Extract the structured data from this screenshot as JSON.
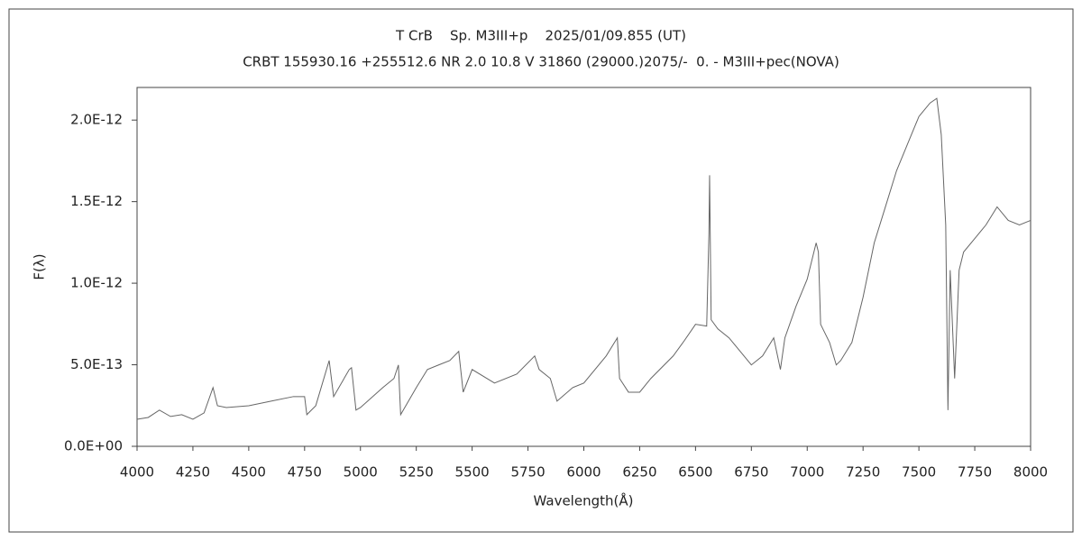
{
  "chart_data": {
    "type": "line",
    "title": "T CrB    Sp. M3III+p    2025/01/09.855 (UT)",
    "subtitle": "CRBT 155930.16 +255512.6 NR 2.0 10.8 V 31860 (29000.)2075/-  0. - M3III+pec(NOVA)",
    "x_label": "Wavelength(Å)",
    "y_label": "F(λ)",
    "xlim": [
      4000,
      8000
    ],
    "ylim": [
      0,
      2.2e-12
    ],
    "xticks": [
      4000,
      4250,
      4500,
      4750,
      5000,
      5250,
      5500,
      5750,
      6000,
      6250,
      6500,
      6750,
      7000,
      7250,
      7500,
      7750,
      8000
    ],
    "yticks": [
      {
        "value": 0,
        "label": "0.0E+00"
      },
      {
        "value": 5e-13,
        "label": "5.0E-13"
      },
      {
        "value": 1e-12,
        "label": "1.0E-12"
      },
      {
        "value": 1.5e-12,
        "label": "1.5E-12"
      },
      {
        "value": 2e-12,
        "label": "2.0E-12"
      }
    ],
    "color": "#666666",
    "x": [
      4000,
      4050,
      4100,
      4150,
      4200,
      4250,
      4300,
      4340,
      4360,
      4400,
      4500,
      4600,
      4700,
      4750,
      4760,
      4800,
      4860,
      4880,
      4950,
      4960,
      4980,
      5000,
      5100,
      5150,
      5170,
      5180,
      5250,
      5300,
      5350,
      5400,
      5440,
      5460,
      5500,
      5600,
      5700,
      5780,
      5800,
      5850,
      5880,
      5950,
      6000,
      6100,
      6150,
      6160,
      6200,
      6250,
      6300,
      6400,
      6450,
      6500,
      6550,
      6560,
      6563,
      6570,
      6600,
      6650,
      6700,
      6750,
      6800,
      6850,
      6880,
      6900,
      6950,
      7000,
      7040,
      7050,
      7060,
      7100,
      7130,
      7150,
      7200,
      7250,
      7300,
      7350,
      7400,
      7450,
      7500,
      7550,
      7580,
      7600,
      7620,
      7630,
      7640,
      7660,
      7680,
      7700,
      7750,
      7800,
      7850,
      7900,
      7950,
      8000
    ],
    "values": [
      1.66e-13,
      1.77e-13,
      2.22e-13,
      1.83e-13,
      1.94e-13,
      1.66e-13,
      2.05e-13,
      3.6e-13,
      2.49e-13,
      2.38e-13,
      2.49e-13,
      2.77e-13,
      3.05e-13,
      3.05e-13,
      1.94e-13,
      2.49e-13,
      5.26e-13,
      3.05e-13,
      4.71e-13,
      4.82e-13,
      2.22e-13,
      2.38e-13,
      3.6e-13,
      4.16e-13,
      4.99e-13,
      1.94e-13,
      3.6e-13,
      4.71e-13,
      4.99e-13,
      5.26e-13,
      5.82e-13,
      3.32e-13,
      4.71e-13,
      3.88e-13,
      4.43e-13,
      5.54e-13,
      4.71e-13,
      4.16e-13,
      2.77e-13,
      3.6e-13,
      3.88e-13,
      5.54e-13,
      6.65e-13,
      4.16e-13,
      3.32e-13,
      3.32e-13,
      4.16e-13,
      5.54e-13,
      6.48e-13,
      7.48e-13,
      7.37e-13,
      1.302e-12,
      1.662e-12,
      7.76e-13,
      7.2e-13,
      6.65e-13,
      5.82e-13,
      4.99e-13,
      5.54e-13,
      6.65e-13,
      4.71e-13,
      6.65e-13,
      8.59e-13,
      1.025e-12,
      1.247e-12,
      1.191e-12,
      7.48e-13,
      6.37e-13,
      4.99e-13,
      5.26e-13,
      6.37e-13,
      9.14e-13,
      1.247e-12,
      1.468e-12,
      1.69e-12,
      1.856e-12,
      2.022e-12,
      2.105e-12,
      2.133e-12,
      1.911e-12,
      1.357e-12,
      2.22e-13,
      1.08e-12,
      4.16e-13,
      1.08e-12,
      1.191e-12,
      1.274e-12,
      1.357e-12,
      1.468e-12,
      1.385e-12,
      1.357e-12,
      1.385e-12
    ]
  }
}
